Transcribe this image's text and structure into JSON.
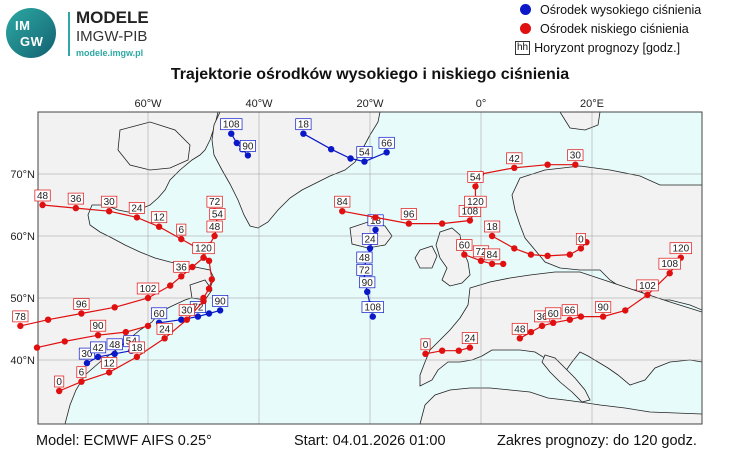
{
  "logo": {
    "badge_line1": "IM",
    "badge_line2": "GW",
    "name": "MODELE",
    "org": "IMGW-PIB",
    "site": "modele.imgw.pl"
  },
  "legend": {
    "high": "Ośrodek wysokiego ciśnienia",
    "low": "Ośrodek niskiego ciśnienia",
    "hh_symbol": "hh",
    "horizon": "Horyzont prognozy [godz.]"
  },
  "title": "Trajektorie ośrodków wysokiego i niskiego ciśnienia",
  "axes": {
    "lon_ticks": [
      "60°W",
      "40°W",
      "20°W",
      "0°",
      "20°E"
    ],
    "lat_ticks": [
      "70°N",
      "60°N",
      "50°N",
      "40°N"
    ]
  },
  "colors": {
    "high": "#0a18c8",
    "low": "#e01010",
    "ocean": "#e7fbfb",
    "land": "#f2f2f2",
    "coast": "#222222"
  },
  "footer": {
    "model": "Model: ECMWF AIFS 0.25°",
    "start": "Start: 04.01.2026 01:00",
    "range": "Zakres prognozy: do 120 godz."
  },
  "tracks": [
    {
      "type": "high",
      "points": [
        [
          -45,
          76.5
        ],
        [
          -44,
          75
        ],
        [
          -43,
          74
        ],
        [
          -42,
          73
        ]
      ],
      "labels": [
        {
          "t": "108",
          "i": 0
        },
        {
          "t": "90",
          "i": 3
        }
      ]
    },
    {
      "type": "high",
      "points": [
        [
          -32,
          76.5
        ],
        [
          -27,
          74
        ],
        [
          -23.5,
          72.5
        ],
        [
          -21,
          72
        ],
        [
          -17,
          73.5
        ]
      ],
      "labels": [
        {
          "t": "18",
          "i": 0
        },
        {
          "t": "66",
          "i": 4
        },
        {
          "t": "54",
          "i": 3
        }
      ]
    },
    {
      "type": "high",
      "points": [
        [
          -19,
          61
        ],
        [
          -20,
          58
        ],
        [
          -21,
          55
        ],
        [
          -21,
          53
        ],
        [
          -20.5,
          51
        ],
        [
          -20,
          49
        ],
        [
          -19.5,
          47
        ]
      ],
      "labels": [
        {
          "t": "18",
          "i": 0
        },
        {
          "t": "24",
          "i": 1
        },
        {
          "t": "48",
          "i": 2
        },
        {
          "t": "72",
          "i": 3
        },
        {
          "t": "90",
          "i": 4
        },
        {
          "t": "108",
          "i": 6
        }
      ]
    },
    {
      "type": "high",
      "points": [
        [
          -58,
          46
        ],
        [
          -54,
          46.5
        ],
        [
          -51,
          47
        ],
        [
          -49,
          47.5
        ],
        [
          -47,
          48
        ]
      ],
      "labels": [
        {
          "t": "60",
          "i": 0
        },
        {
          "t": "72",
          "i": 2
        },
        {
          "t": "90",
          "i": 4
        }
      ]
    },
    {
      "type": "high",
      "points": [
        [
          -71,
          39.5
        ],
        [
          -69,
          40.5
        ],
        [
          -66,
          41
        ],
        [
          -63,
          41.5
        ]
      ],
      "labels": [
        {
          "t": "30",
          "i": 0
        },
        {
          "t": "42",
          "i": 1
        },
        {
          "t": "48",
          "i": 2
        },
        {
          "t": "54",
          "i": 3
        }
      ]
    },
    {
      "type": "low",
      "points": [
        [
          -79,
          65
        ],
        [
          -73,
          64.5
        ],
        [
          -67,
          64
        ],
        [
          -62,
          63
        ],
        [
          -58,
          61.5
        ],
        [
          -54,
          59.5
        ],
        [
          -51,
          58
        ],
        [
          -49,
          56
        ],
        [
          -48.5,
          53
        ],
        [
          -49,
          51.5
        ],
        [
          -50,
          50
        ]
      ],
      "labels": [
        {
          "t": "48",
          "i": 0
        },
        {
          "t": "36",
          "i": 1
        },
        {
          "t": "30",
          "i": 2
        },
        {
          "t": "24",
          "i": 3
        },
        {
          "t": "12",
          "i": 4
        },
        {
          "t": "6",
          "i": 5
        }
      ]
    },
    {
      "type": "low",
      "points": [
        [
          -48,
          64
        ],
        [
          -47.5,
          62
        ],
        [
          -48,
          60
        ],
        [
          -49,
          58.5
        ],
        [
          -50,
          56.5
        ],
        [
          -52,
          55
        ],
        [
          -54,
          53.5
        ],
        [
          -56,
          52
        ],
        [
          -60,
          50
        ],
        [
          -66,
          48.5
        ],
        [
          -72,
          47.5
        ],
        [
          -78,
          46.5
        ],
        [
          -83,
          45.5
        ]
      ],
      "labels": [
        {
          "t": "72",
          "i": 0
        },
        {
          "t": "54",
          "i": 1
        },
        {
          "t": "48",
          "i": 2
        },
        {
          "t": "120",
          "i": 4
        },
        {
          "t": "36",
          "i": 6
        },
        {
          "t": "102",
          "i": 8
        },
        {
          "t": "96",
          "i": 10
        },
        {
          "t": "78",
          "i": 12
        }
      ]
    },
    {
      "type": "low",
      "points": [
        [
          -76,
          35
        ],
        [
          -72,
          36.5
        ],
        [
          -67,
          38
        ],
        [
          -62,
          40.5
        ],
        [
          -57,
          43.5
        ],
        [
          -53,
          46.5
        ],
        [
          -50,
          49.5
        ]
      ],
      "labels": [
        {
          "t": "0",
          "i": 0
        },
        {
          "t": "6",
          "i": 1
        },
        {
          "t": "12",
          "i": 2
        },
        {
          "t": "18",
          "i": 3
        },
        {
          "t": "24",
          "i": 4
        },
        {
          "t": "30",
          "i": 5
        }
      ]
    },
    {
      "type": "low",
      "points": [
        [
          -80,
          42
        ],
        [
          -75,
          43
        ],
        [
          -69,
          44
        ],
        [
          -64,
          44.5
        ],
        [
          -60,
          45.5
        ]
      ],
      "labels": [
        {
          "t": "90",
          "i": 2
        }
      ]
    },
    {
      "type": "low",
      "points": [
        [
          -25,
          64
        ],
        [
          -19,
          63
        ],
        [
          -13,
          62
        ],
        [
          -7,
          62
        ],
        [
          -2,
          62.5
        ],
        [
          -1,
          64
        ],
        [
          -1,
          68
        ],
        [
          0,
          70
        ],
        [
          6,
          71
        ],
        [
          12,
          71.5
        ],
        [
          17,
          71.5
        ]
      ],
      "labels": [
        {
          "t": "84",
          "i": 0
        },
        {
          "t": "96",
          "i": 2
        },
        {
          "t": "108",
          "i": 4
        },
        {
          "t": "120",
          "i": 5
        },
        {
          "t": "54",
          "i": 6
        },
        {
          "t": "42",
          "i": 8
        },
        {
          "t": "30",
          "i": 10
        }
      ]
    },
    {
      "type": "low",
      "points": [
        [
          2,
          60
        ],
        [
          6,
          58
        ],
        [
          9,
          57
        ],
        [
          12,
          56.8
        ],
        [
          16,
          57
        ],
        [
          18,
          58
        ],
        [
          19,
          59
        ]
      ],
      "labels": [
        {
          "t": "18",
          "i": 0
        },
        {
          "t": "0",
          "i": 5
        }
      ]
    },
    {
      "type": "low",
      "points": [
        [
          -3,
          57
        ],
        [
          0,
          56
        ],
        [
          2,
          55.5
        ],
        [
          4,
          55.5
        ]
      ],
      "labels": [
        {
          "t": "60",
          "i": 0
        },
        {
          "t": "72",
          "i": 1
        },
        {
          "t": "84",
          "i": 2
        }
      ]
    },
    {
      "type": "low",
      "points": [
        [
          -10,
          41
        ],
        [
          -7,
          41.5
        ],
        [
          -4,
          41.5
        ],
        [
          -2,
          42
        ]
      ],
      "labels": [
        {
          "t": "0",
          "i": 0
        },
        {
          "t": "24",
          "i": 3
        }
      ]
    },
    {
      "type": "low",
      "points": [
        [
          7,
          43.5
        ],
        [
          9,
          44.5
        ],
        [
          11,
          45.5
        ],
        [
          13,
          46
        ],
        [
          16,
          46.5
        ],
        [
          18,
          47
        ],
        [
          22,
          47
        ],
        [
          26,
          48
        ],
        [
          30,
          50.5
        ],
        [
          34,
          54
        ],
        [
          36,
          56.5
        ]
      ],
      "labels": [
        {
          "t": "48",
          "i": 0
        },
        {
          "t": "36",
          "i": 2
        },
        {
          "t": "60",
          "i": 3
        },
        {
          "t": "66",
          "i": 4
        },
        {
          "t": "90",
          "i": 6
        },
        {
          "t": "102",
          "i": 8
        },
        {
          "t": "108",
          "i": 9
        },
        {
          "t": "120",
          "i": 10
        }
      ]
    }
  ]
}
